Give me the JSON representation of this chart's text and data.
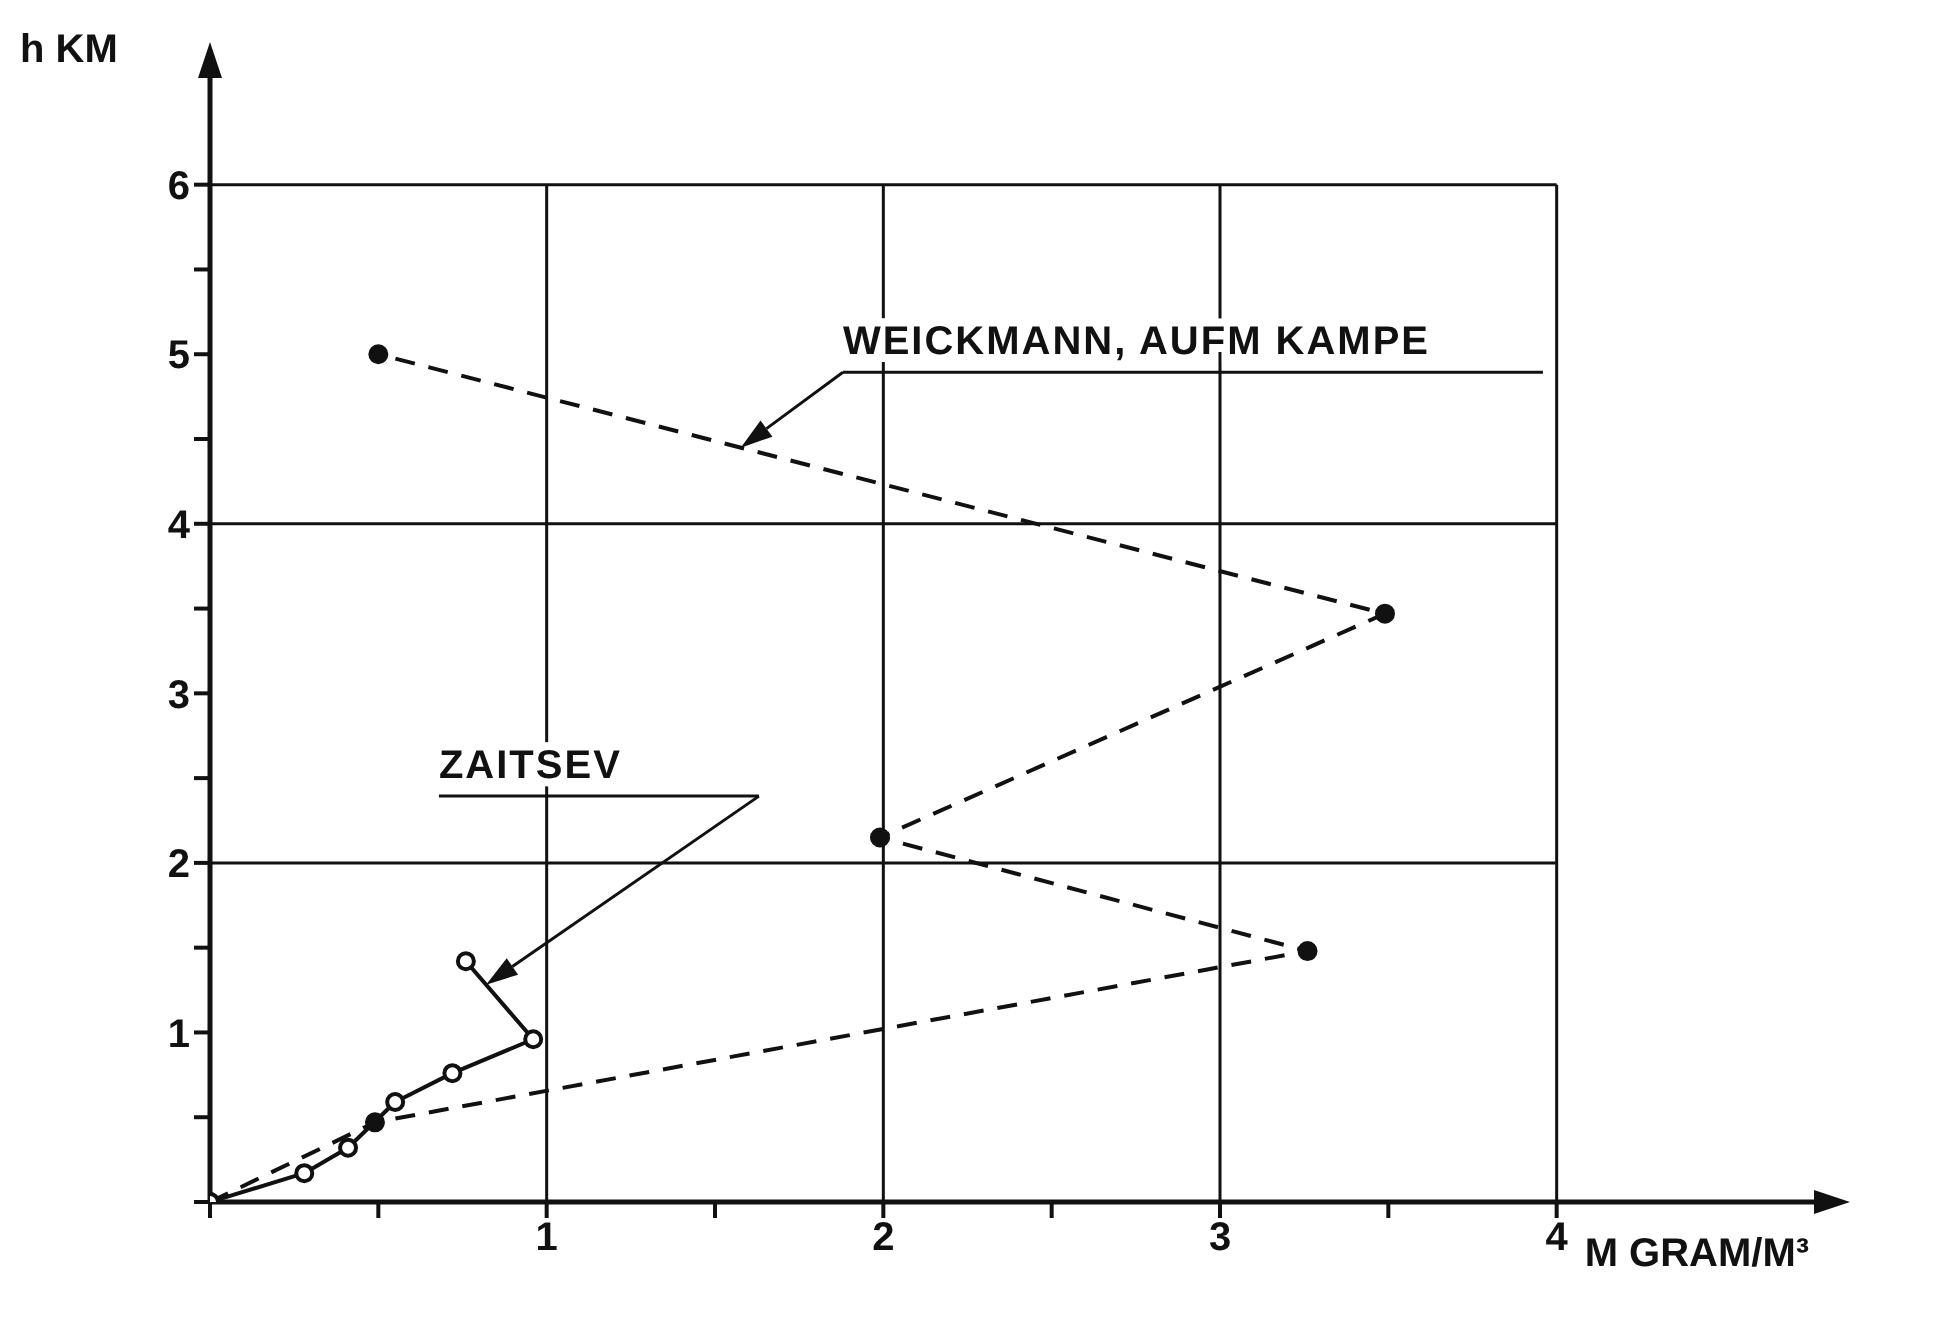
{
  "chart_data": {
    "type": "line",
    "xlabel": "M GRAM/M³",
    "ylabel": "h KM",
    "xlim": [
      0,
      4.8
    ],
    "ylim": [
      0,
      6.7
    ],
    "xticks": [
      {
        "value": 0,
        "label": null
      },
      {
        "value": 0.5,
        "label": null
      },
      1,
      {
        "value": 1.5,
        "label": null
      },
      2,
      {
        "value": 2.5,
        "label": null
      },
      3,
      {
        "value": 3.5,
        "label": null
      },
      4
    ],
    "yticks": [
      {
        "value": 0,
        "label": null
      },
      {
        "value": 0.5,
        "label": null
      },
      1,
      {
        "value": 1.5,
        "label": null
      },
      2,
      {
        "value": 2.5,
        "label": null
      },
      3,
      {
        "value": 3.5,
        "label": null
      },
      4,
      {
        "value": 4.5,
        "label": null
      },
      5,
      {
        "value": 5.5,
        "label": null
      },
      6
    ],
    "grid": "x",
    "marker": "circle",
    "legend": false,
    "ref_lines": [
      {
        "axis": "y",
        "value": 2,
        "label": null
      },
      {
        "axis": "y",
        "value": 4,
        "label": null
      },
      {
        "axis": "y",
        "value": 6,
        "label": null
      }
    ],
    "series": [
      {
        "name": "WEICKMANN, AUFM KAMPE",
        "color": "#111111",
        "line_style": "dashed",
        "x": [
          0,
          0.49,
          3.26,
          1.99,
          3.49,
          0.5
        ],
        "values": [
          0,
          0.47,
          1.48,
          2.15,
          3.47,
          5.0
        ]
      },
      {
        "name": "ZAITSEV",
        "color": "#111111",
        "line_style": "solid",
        "x": [
          0,
          0.28,
          0.41,
          0.55,
          0.72,
          0.96,
          0.76
        ],
        "values": [
          0,
          0.17,
          0.32,
          0.59,
          0.76,
          0.96,
          1.42
        ]
      }
    ]
  }
}
